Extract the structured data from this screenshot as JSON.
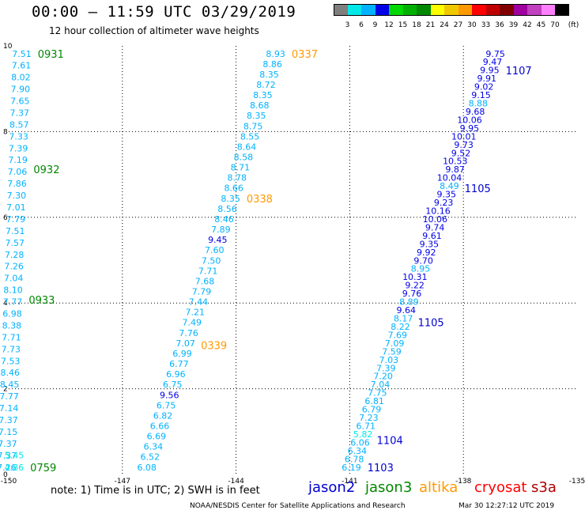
{
  "header": {
    "title": "00:00 – 11:59 UTC 03/29/2019",
    "subtitle": "12 hour collection of altimeter wave heights"
  },
  "colorbar": {
    "unit_label": "(ft)",
    "ticks": [
      "3",
      "6",
      "9",
      "12",
      "15",
      "18",
      "21",
      "24",
      "27",
      "30",
      "33",
      "36",
      "39",
      "42",
      "45",
      "70"
    ],
    "colors": [
      "#7f7f7f",
      "#00e8e8",
      "#00b2ff",
      "#0000e8",
      "#00d800",
      "#00b000",
      "#008800",
      "#ffff00",
      "#f0c800",
      "#ff9900",
      "#ff0000",
      "#c00000",
      "#800000",
      "#a000a0",
      "#c040c0",
      "#ff80ff",
      "#000000"
    ]
  },
  "chart_data": {
    "type": "scatter",
    "title": "00:00 – 11:59 UTC 03/29/2019",
    "subtitle": "12 hour collection of altimeter wave heights",
    "xlim": [
      -150,
      -135
    ],
    "ylim": [
      0,
      10
    ],
    "x_ticks": [
      "-150",
      "-147",
      "-144",
      "-141",
      "-138",
      "-135"
    ],
    "y_ticks": [
      "0",
      "2",
      "4",
      "6",
      "8",
      "10"
    ],
    "grid": true,
    "series": [
      {
        "name": "jason3",
        "passes": [
          {
            "x_start": -149.4,
            "x_end": -149.8,
            "values": [
              "7.51",
              "7.61",
              "8.02",
              "7.90",
              "7.65",
              "7.37",
              "8.57",
              "7.33",
              "7.39",
              "7.19",
              "7.06",
              "7.86",
              "7.30",
              "7.01",
              "7.79",
              "7.51",
              "7.57",
              "7.28",
              "7.26",
              "7.04",
              "8.10",
              "7.77",
              "6.98",
              "8.38",
              "7.71",
              "7.73",
              "7.53",
              "8.46",
              "8.45",
              "7.77",
              "7.14",
              "7.37",
              "7.15",
              "7.37",
              "7.37",
              "7.26"
            ],
            "time_labels": [
              {
                "text": "0931",
                "y": 9.82
              },
              {
                "text": "0932",
                "y": 7.12
              },
              {
                "text": "0933",
                "y": 4.08
              }
            ]
          },
          {
            "x_start": -149.5,
            "x_end": -149.6,
            "values": [
              "5.45",
              "4.86"
            ],
            "y_values": [
              0.45,
              0.17
            ],
            "time_labels": [
              {
                "text": "0759",
                "y": 0.17
              }
            ]
          }
        ]
      },
      {
        "name": "altika",
        "passes": [
          {
            "x_start": -142.7,
            "x_end": -146.1,
            "values": [
              "8.93",
              "8.86",
              "8.35",
              "8.72",
              "8.35",
              "8.68",
              "8.35",
              "8.75",
              "8.55",
              "8.64",
              "8.58",
              "8.71",
              "8.78",
              "8.66",
              "8.35",
              "8.56",
              "8.46",
              "7.89",
              "9.45",
              "7.60",
              "7.50",
              "7.71",
              "7.68",
              "7.79",
              "7.44",
              "7.21",
              "7.49",
              "7.76",
              "7.07",
              "6.99",
              "6.77",
              "6.96",
              "6.75",
              "9.56",
              "6.75",
              "6.82",
              "6.66",
              "6.69",
              "6.34",
              "6.52",
              "6.08"
            ],
            "time_labels": [
              {
                "text": "0337",
                "y": 9.82
              },
              {
                "text": "0338",
                "y": 6.44
              },
              {
                "text": "0339",
                "y": 3.02
              }
            ]
          }
        ]
      },
      {
        "name": "jason2",
        "passes": [
          {
            "x_start": -136.9,
            "x_end": -140.7,
            "values": [
              "9.75",
              "9.47",
              "9.95",
              "9.91",
              "9.02",
              "9.15",
              "8.88",
              "9.68",
              "10.06",
              "9.95",
              "10.01",
              "9.73",
              "9.52",
              "10.53",
              "9.87",
              "10.04",
              "8.49",
              "9.35",
              "9.23",
              "10.16",
              "10.06",
              "9.74",
              "9.61",
              "9.35",
              "9.92",
              "9.70",
              "8.95",
              "10.31",
              "9.22",
              "9.76",
              "8.89",
              "9.64",
              "8.17",
              "8.22",
              "7.69",
              "7.09",
              "7.59",
              "7.03",
              "7.39",
              "7.20",
              "7.04",
              "7.75",
              "6.81",
              "6.79",
              "7.23",
              "6.71",
              "5.82",
              "6.06",
              "6.34",
              "6.78",
              "6.19"
            ],
            "time_labels": [
              {
                "text": "1107",
                "y": 9.43
              },
              {
                "text": "1105",
                "y": 6.68
              },
              {
                "text": "1105",
                "y": 3.55
              },
              {
                "text": "1104",
                "y": 0.8
              },
              {
                "text": "1103",
                "y": 0.17
              }
            ]
          }
        ]
      }
    ]
  },
  "legend": {
    "note": "note:  1) Time is in UTC;  2) SWH is in feet",
    "satellites": [
      {
        "name": "jason2",
        "color": "#0000d0"
      },
      {
        "name": "jason3",
        "color": "#008800"
      },
      {
        "name": "altika",
        "color": "#ff9900"
      },
      {
        "name": "cryosat",
        "color": "#ff0000"
      },
      {
        "name": "s3a",
        "color": "#b00000"
      }
    ]
  },
  "footer": {
    "credit": "NOAA/NESDIS Center for Satellite Applications and Research",
    "timestamp": "Mar 30 12:27:12 UTC 2019"
  }
}
